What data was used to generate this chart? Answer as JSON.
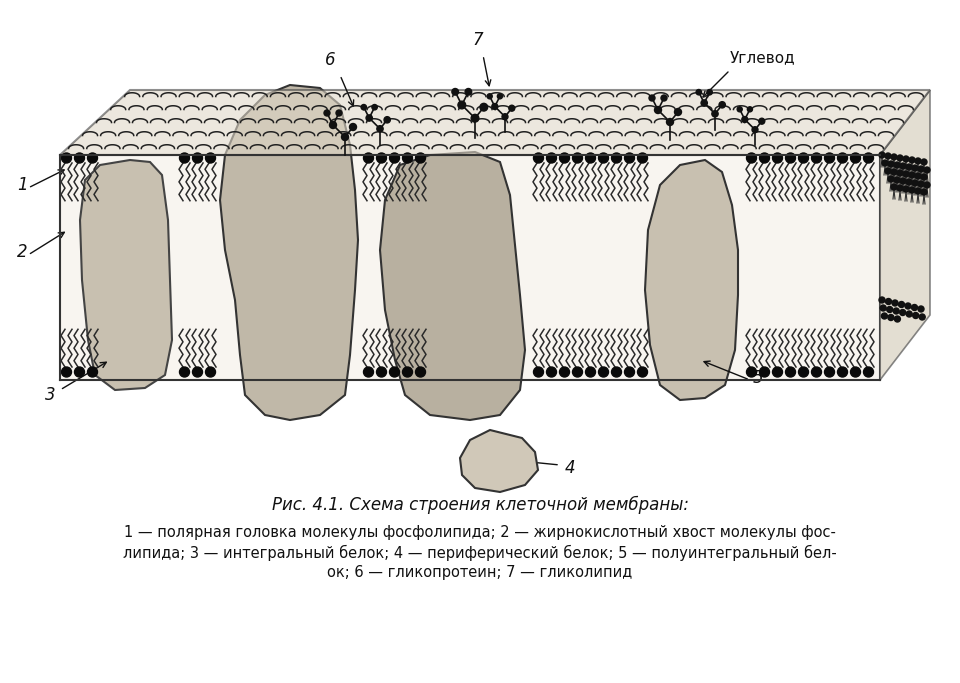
{
  "background_color": "#f5f5f0",
  "title": "Рис. 4.1. Схема строения клеточной мембраны:",
  "caption_line1": "1 — полярная головка молекулы фосфолипида; 2 — жирнокислотный хвост молекулы фос-",
  "caption_line2": "липида; 3 — интегральный белок; 4 — периферический белок; 5 — полуинтегральный бел-",
  "caption_line3": "ок; 6 — гликопротеин; 7 — гликолипид",
  "label_uglerod": "Углевод",
  "figure_bg": "#ffffff",
  "membrane_color": "#2a2a2a",
  "protein_fill": "#d0c8b8",
  "protein_edge": "#1a1a1a",
  "lipid_head_color": "#1a1a1a",
  "lipid_tail_color": "#1a1a1a"
}
